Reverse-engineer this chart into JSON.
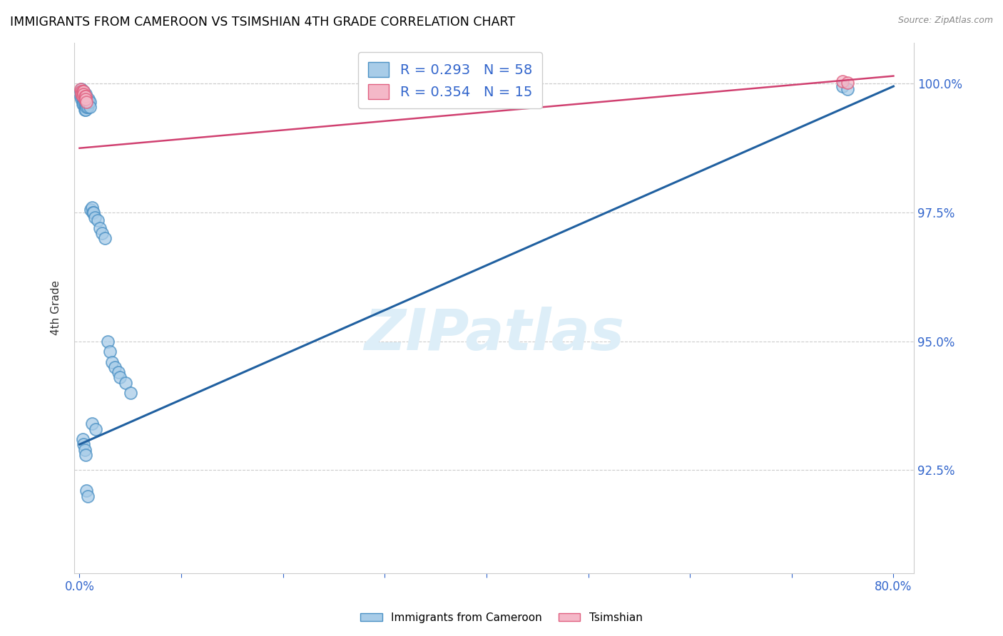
{
  "title": "IMMIGRANTS FROM CAMEROON VS TSIMSHIAN 4TH GRADE CORRELATION CHART",
  "source": "Source: ZipAtlas.com",
  "ylabel": "4th Grade",
  "xlim": [
    -0.005,
    0.82
  ],
  "ylim": [
    0.905,
    1.008
  ],
  "xticks": [
    0.0,
    0.1,
    0.2,
    0.3,
    0.4,
    0.5,
    0.6,
    0.7,
    0.8
  ],
  "xticklabels": [
    "0.0%",
    "",
    "",
    "",
    "",
    "",
    "",
    "",
    "80.0%"
  ],
  "yticks": [
    0.925,
    0.95,
    0.975,
    1.0
  ],
  "yticklabels": [
    "92.5%",
    "95.0%",
    "97.5%",
    "100.0%"
  ],
  "blue_color": "#a8cce8",
  "pink_color": "#f4b8c8",
  "blue_edge_color": "#4a90c4",
  "pink_edge_color": "#e06080",
  "blue_line_color": "#2060a0",
  "pink_line_color": "#d04070",
  "watermark_color": "#ddeef8",
  "blue_trend_x0": 0.0,
  "blue_trend_y0": 0.93,
  "blue_trend_x1": 0.8,
  "blue_trend_y1": 0.9995,
  "pink_trend_x0": 0.0,
  "pink_trend_y0": 0.9875,
  "pink_trend_x1": 0.8,
  "pink_trend_y1": 1.0015,
  "blue_dots_x": [
    0.001,
    0.001,
    0.002,
    0.002,
    0.002,
    0.002,
    0.003,
    0.003,
    0.003,
    0.003,
    0.004,
    0.004,
    0.004,
    0.004,
    0.005,
    0.005,
    0.005,
    0.006,
    0.006,
    0.006,
    0.006,
    0.007,
    0.007,
    0.007,
    0.008,
    0.008,
    0.008,
    0.009,
    0.009,
    0.01,
    0.01,
    0.011,
    0.012,
    0.013,
    0.014,
    0.015,
    0.018,
    0.02,
    0.022,
    0.025,
    0.028,
    0.03,
    0.032,
    0.035,
    0.038,
    0.04,
    0.045,
    0.05,
    0.003,
    0.004,
    0.005,
    0.006,
    0.007,
    0.008,
    0.75,
    0.755,
    0.012,
    0.016
  ],
  "blue_dots_y": [
    0.9985,
    0.9975,
    0.999,
    0.9985,
    0.998,
    0.997,
    0.9985,
    0.998,
    0.997,
    0.996,
    0.9985,
    0.998,
    0.997,
    0.996,
    0.997,
    0.996,
    0.995,
    0.998,
    0.997,
    0.996,
    0.995,
    0.997,
    0.996,
    0.9955,
    0.9965,
    0.996,
    0.9955,
    0.997,
    0.9965,
    0.9965,
    0.9955,
    0.9755,
    0.976,
    0.975,
    0.975,
    0.974,
    0.9735,
    0.972,
    0.971,
    0.97,
    0.95,
    0.948,
    0.946,
    0.945,
    0.944,
    0.943,
    0.942,
    0.94,
    0.931,
    0.93,
    0.929,
    0.928,
    0.921,
    0.92,
    0.9995,
    0.999,
    0.934,
    0.933
  ],
  "pink_dots_x": [
    0.001,
    0.002,
    0.002,
    0.003,
    0.003,
    0.003,
    0.004,
    0.004,
    0.005,
    0.005,
    0.006,
    0.006,
    0.007,
    0.75,
    0.755
  ],
  "pink_dots_y": [
    0.999,
    0.9985,
    0.998,
    0.9985,
    0.998,
    0.9975,
    0.9985,
    0.998,
    0.9975,
    0.997,
    0.9975,
    0.997,
    0.9965,
    1.0005,
    1.0002
  ]
}
